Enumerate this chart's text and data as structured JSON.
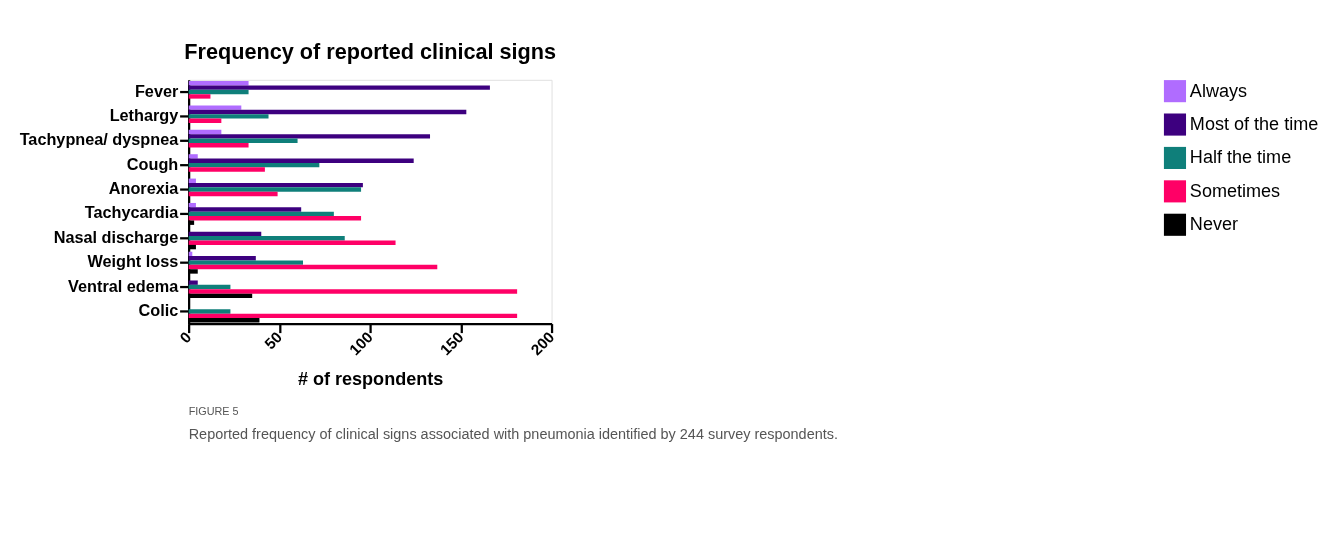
{
  "chart_data": {
    "type": "bar",
    "orientation": "horizontal",
    "title": "Frequency of reported clinical signs",
    "xlabel": "# of respondents",
    "categories": [
      "Fever",
      "Lethargy",
      "Tachypnea/ dyspnea",
      "Cough",
      "Anorexia",
      "Tachycardia",
      "Nasal discharge",
      "Weight loss",
      "Ventral edema",
      "Colic"
    ],
    "series": [
      {
        "name": "Always",
        "color": "#b06cff",
        "values": [
          33,
          29,
          18,
          5,
          4,
          4,
          0,
          2,
          0,
          0
        ]
      },
      {
        "name": "Most of the time",
        "color": "#3d007f",
        "values": [
          166,
          153,
          133,
          124,
          96,
          62,
          40,
          37,
          5,
          null
        ]
      },
      {
        "name": "Half the time",
        "color": "#0f7f7a",
        "values": [
          33,
          44,
          60,
          72,
          95,
          80,
          86,
          63,
          23,
          23
        ]
      },
      {
        "name": "Sometimes",
        "color": "#ff0066",
        "values": [
          12,
          18,
          33,
          42,
          49,
          95,
          114,
          137,
          181,
          181
        ]
      },
      {
        "name": "Never",
        "color": "#000000",
        "values": [
          0,
          0,
          0,
          null,
          0,
          3,
          4,
          5,
          35,
          39
        ]
      }
    ],
    "xlim": [
      0,
      200
    ],
    "xticks": [
      0,
      50,
      100,
      150,
      200
    ],
    "grid": false,
    "legend": "right",
    "annotations": [
      "FIGURE 5",
      "Reported frequency of clinical signs associated with pneumonia identified by 244 survey respondents."
    ]
  }
}
